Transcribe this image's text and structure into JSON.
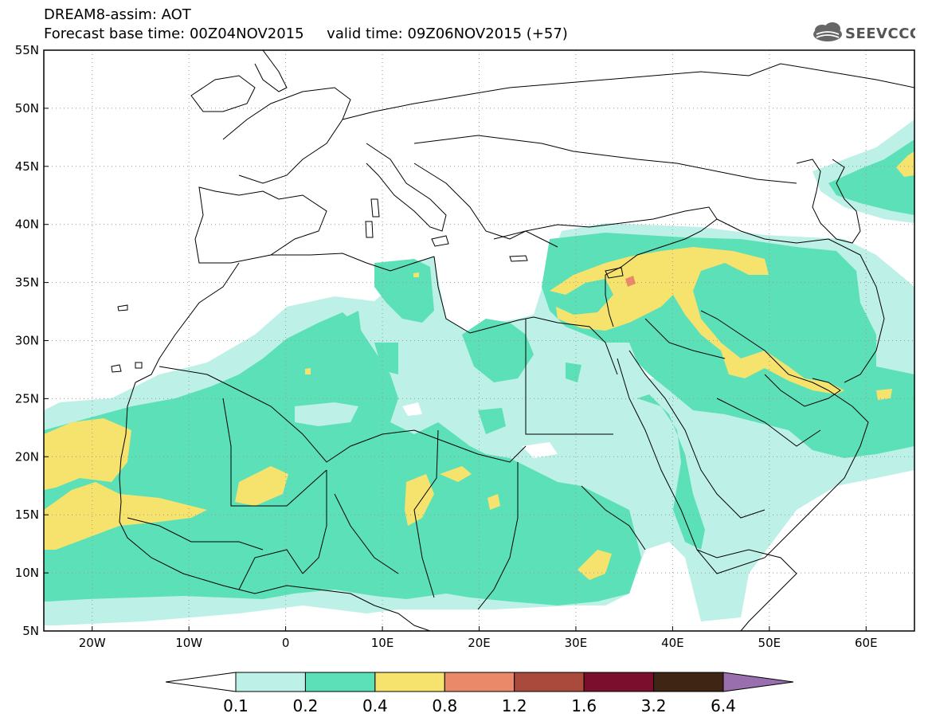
{
  "header": {
    "title": "DREAM8-assim: AOT",
    "base_time": "Forecast base time: 00Z04NOV2015",
    "valid_time": "valid time: 09Z06NOV2015 (+57)",
    "logo": "SEEVCCC"
  },
  "map": {
    "lon_range": [
      -25,
      65
    ],
    "lat_range": [
      5,
      55
    ],
    "lat_ticks": [
      "5N",
      "10N",
      "15N",
      "20N",
      "25N",
      "30N",
      "35N",
      "40N",
      "45N",
      "50N",
      "55N"
    ],
    "lon_ticks": [
      "20W",
      "10W",
      "0",
      "10E",
      "20E",
      "30E",
      "40E",
      "50E",
      "60E"
    ],
    "grid": "dotted",
    "ocean_color": "#ffffff",
    "border_color": "#000000"
  },
  "colorbar": {
    "levels": [
      "0.1",
      "0.2",
      "0.4",
      "0.8",
      "1.2",
      "1.6",
      "3.2",
      "6.4"
    ],
    "colors": [
      "#ffffff",
      "#bdf0e6",
      "#5ce0b8",
      "#f6e36e",
      "#e9896a",
      "#a94a3d",
      "#7a0e2c",
      "#3f2514",
      "#9a6fae"
    ]
  }
}
